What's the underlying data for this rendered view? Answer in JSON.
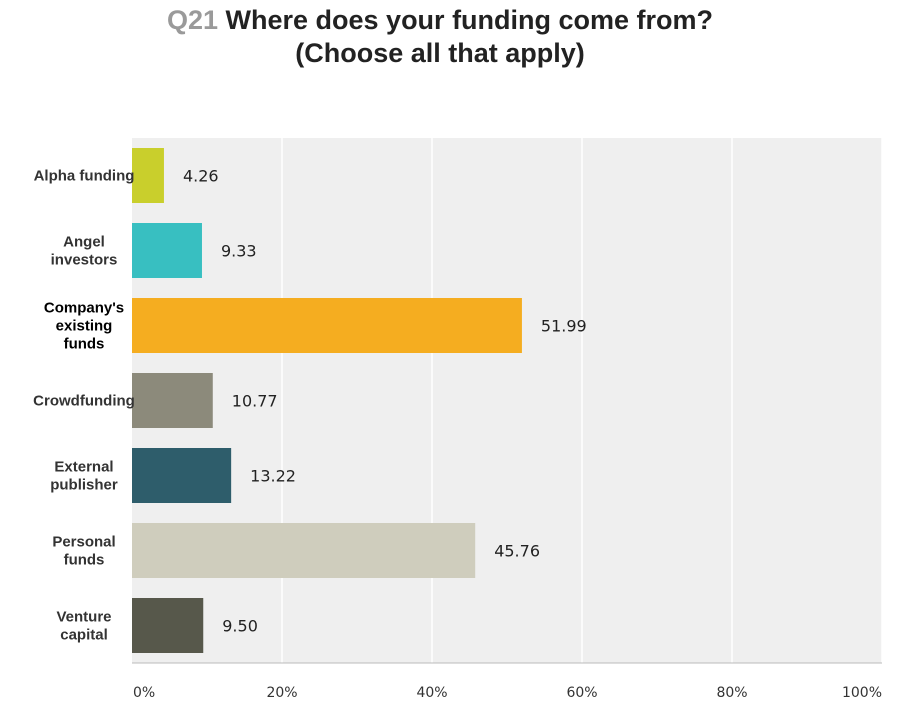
{
  "title": {
    "qnum": "Q21",
    "line1": "Where does your funding come from?",
    "line2": "(Choose all that apply)"
  },
  "chart_data": {
    "type": "bar",
    "orientation": "horizontal",
    "categories": [
      "Alpha funding",
      "Angel investors",
      "Company's existing funds",
      "Crowdfunding",
      "External publisher",
      "Personal funds",
      "Venture capital"
    ],
    "category_label_lines": [
      [
        "Alpha funding"
      ],
      [
        "Angel",
        "investors"
      ],
      [
        "Company's",
        "existing",
        "funds"
      ],
      [
        "Crowdfunding"
      ],
      [
        "External",
        "publisher"
      ],
      [
        "Personal",
        "funds"
      ],
      [
        "Venture",
        "capital"
      ]
    ],
    "values": [
      4.26,
      9.33,
      51.99,
      10.77,
      13.22,
      45.76,
      9.5
    ],
    "value_labels": [
      "4.26",
      "9.33",
      "51.99",
      "10.77",
      "13.22",
      "45.76",
      "9.50"
    ],
    "colors": [
      "#c9cf2c",
      "#38bfc1",
      "#f5ad20",
      "#8c8a7b",
      "#2e5d6b",
      "#cfcdbd",
      "#57584b"
    ],
    "xlim": [
      0,
      100
    ],
    "xticks": [
      0,
      20,
      40,
      60,
      80,
      100
    ],
    "xtick_labels": [
      "0%",
      "20%",
      "40%",
      "60%",
      "80%",
      "100%"
    ],
    "grid": true,
    "background": "#efefef"
  }
}
